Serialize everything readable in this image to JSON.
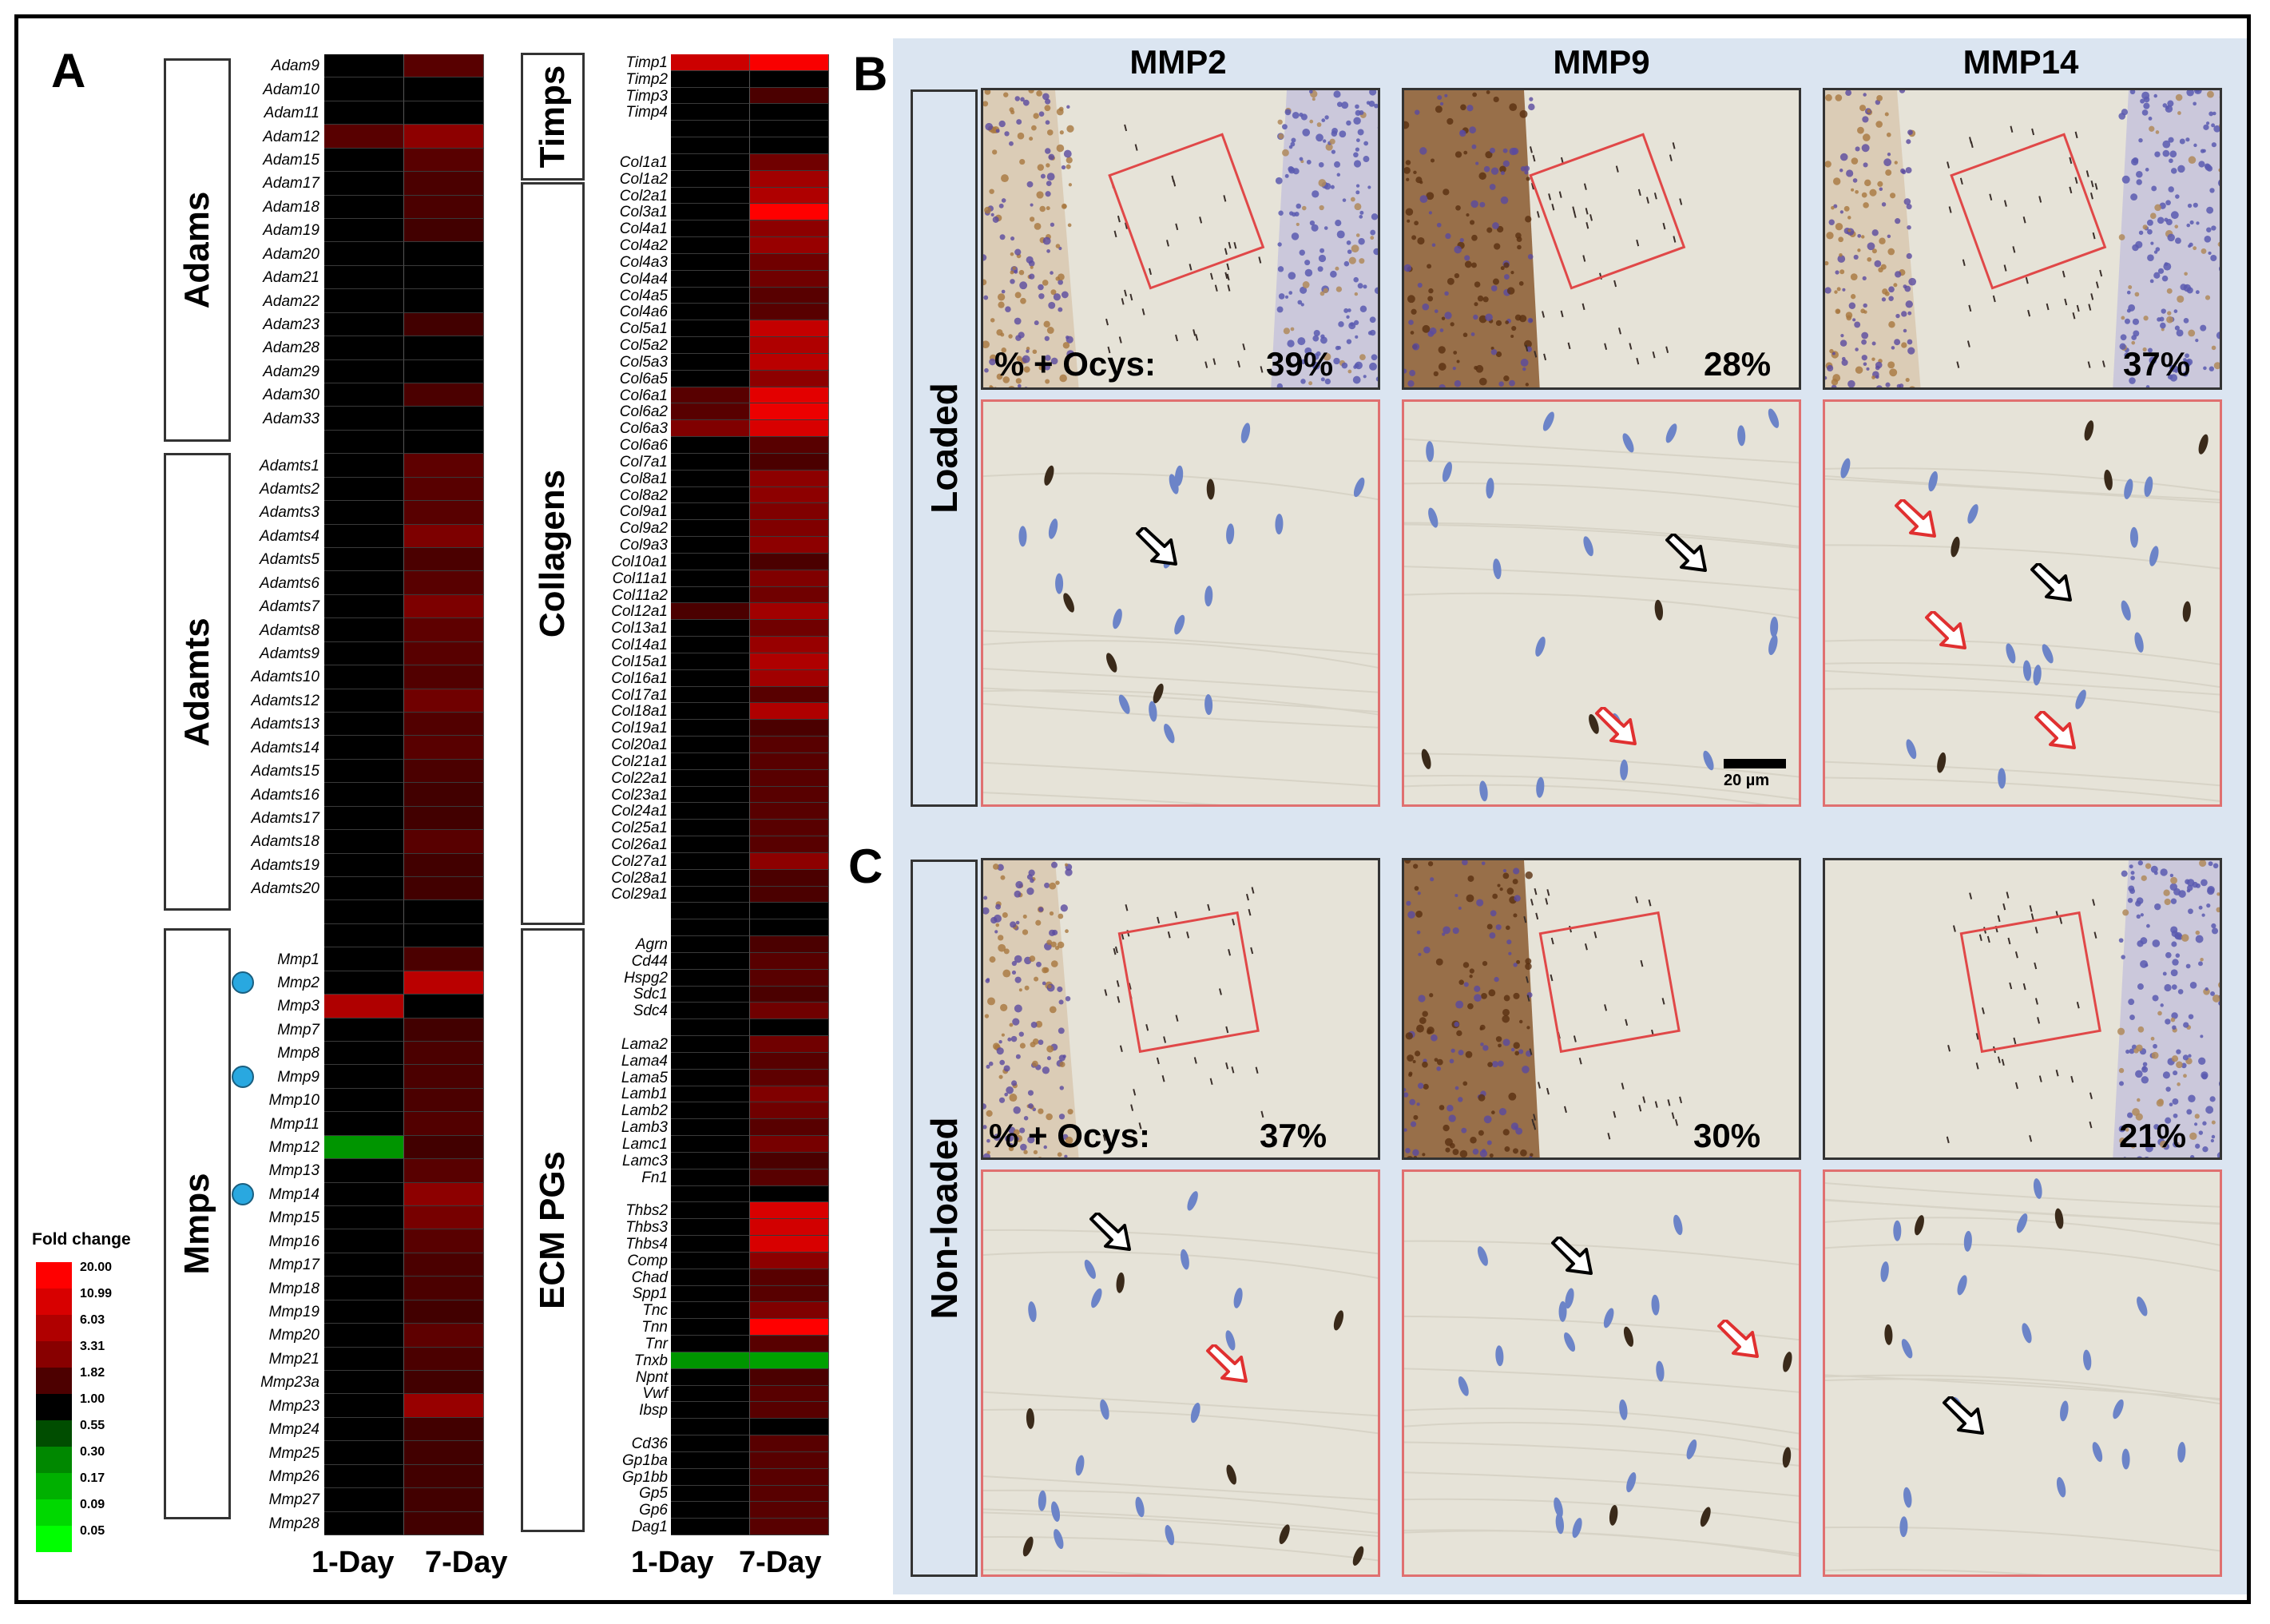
{
  "panels": {
    "A": "A",
    "B": "B",
    "C": "C"
  },
  "heatmap_left": {
    "group_labels": [
      "Adams",
      "Adamts",
      "Mmps"
    ],
    "genes": [
      "Adam9",
      "Adam10",
      "Adam11",
      "Adam12",
      "Adam15",
      "Adam17",
      "Adam18",
      "Adam19",
      "Adam20",
      "Adam21",
      "Adam22",
      "Adam23",
      "Adam28",
      "Adam29",
      "Adam30",
      "Adam33",
      "",
      "Adamts1",
      "Adamts2",
      "Adamts3",
      "Adamts4",
      "Adamts5",
      "Adamts6",
      "Adamts7",
      "Adamts8",
      "Adamts9",
      "Adamts10",
      "Adamts12",
      "Adamts13",
      "Adamts14",
      "Adamts15",
      "Adamts16",
      "Adamts17",
      "Adamts18",
      "Adamts19",
      "Adamts20",
      "",
      "",
      "Mmp1",
      "Mmp2",
      "Mmp3",
      "Mmp7",
      "Mmp8",
      "Mmp9",
      "Mmp10",
      "Mmp11",
      "Mmp12",
      "Mmp13",
      "Mmp14",
      "Mmp15",
      "Mmp16",
      "Mmp17",
      "Mmp18",
      "Mmp19",
      "Mmp20",
      "Mmp21",
      "Mmp23a",
      "Mmp23",
      "Mmp24",
      "Mmp25",
      "Mmp26",
      "Mmp27",
      "Mmp28"
    ],
    "day1": [
      1.0,
      1.0,
      1.0,
      1.5,
      1.0,
      1.0,
      1.0,
      1.0,
      1.0,
      1.0,
      1.0,
      1.0,
      1.0,
      1.0,
      1.0,
      1.0,
      1.0,
      1.0,
      1.0,
      1.0,
      1.0,
      1.0,
      1.0,
      1.0,
      1.0,
      1.0,
      1.0,
      1.0,
      1.0,
      1.0,
      1.0,
      1.0,
      1.0,
      1.0,
      1.0,
      1.0,
      1.0,
      1.0,
      1.0,
      1.0,
      5.0,
      1.0,
      1.0,
      1.0,
      1.0,
      1.0,
      0.3,
      1.0,
      1.0,
      1.0,
      1.0,
      1.0,
      1.0,
      1.0,
      1.0,
      1.0,
      1.0,
      1.0,
      1.0,
      1.0,
      1.0,
      1.0,
      1.0
    ],
    "day7": [
      1.5,
      1.0,
      1.0,
      3.0,
      1.5,
      1.3,
      1.3,
      1.2,
      1.0,
      1.0,
      1.0,
      1.2,
      1.0,
      1.0,
      1.3,
      1.0,
      1.0,
      1.6,
      1.5,
      1.5,
      2.4,
      1.3,
      1.5,
      2.4,
      1.6,
      1.5,
      1.4,
      2.0,
      1.4,
      1.5,
      1.3,
      1.2,
      1.2,
      1.5,
      1.2,
      1.2,
      1.0,
      1.0,
      1.3,
      6.0,
      1.0,
      1.2,
      1.3,
      1.3,
      1.3,
      1.4,
      1.2,
      1.5,
      3.0,
      2.2,
      1.5,
      1.3,
      1.3,
      1.2,
      1.6,
      1.3,
      1.2,
      3.5,
      1.2,
      1.2,
      1.2,
      1.2,
      1.2
    ],
    "highlight_genes": [
      "Mmp2",
      "Mmp9",
      "Mmp14"
    ],
    "x_labels": [
      "1-Day",
      "7-Day"
    ]
  },
  "heatmap_right": {
    "group_labels": [
      "Timps",
      "Collagens",
      "ECM PGs"
    ],
    "genes": [
      "Timp1",
      "Timp2",
      "Timp3",
      "Timp4",
      "",
      "",
      "Col1a1",
      "Col1a2",
      "Col2a1",
      "Col3a1",
      "Col4a1",
      "Col4a2",
      "Col4a3",
      "Col4a4",
      "Col4a5",
      "Col4a6",
      "Col5a1",
      "Col5a2",
      "Col5a3",
      "Col6a5",
      "Col6a1",
      "Col6a2",
      "Col6a3",
      "Col6a6",
      "Col7a1",
      "Col8a1",
      "Col8a2",
      "Col9a1",
      "Col9a2",
      "Col9a3",
      "Col10a1",
      "Col11a1",
      "Col11a2",
      "Col12a1",
      "Col13a1",
      "Col14a1",
      "Col15a1",
      "Col16a1",
      "Col17a1",
      "Col18a1",
      "Col19a1",
      "Col20a1",
      "Col21a1",
      "Col22a1",
      "Col23a1",
      "Col24a1",
      "Col25a1",
      "Col26a1",
      "Col27a1",
      "Col28a1",
      "Col29a1",
      "",
      "",
      "Agrn",
      "Cd44",
      "Hspg2",
      "Sdc1",
      "Sdc4",
      "",
      "Lama2",
      "Lama4",
      "Lama5",
      "Lamb1",
      "Lamb2",
      "Lamb3",
      "Lamc1",
      "Lamc3",
      "Fn1",
      "",
      "Thbs2",
      "Thbs3",
      "Thbs4",
      "Comp",
      "Chad",
      "Spp1",
      "Tnc",
      "Tnn",
      "Tnr",
      "Tnxb",
      "Npnt",
      "Vwf",
      "Ibsp",
      "",
      "Cd36",
      "Gp1ba",
      "Gp1bb",
      "Gp5",
      "Gp6",
      "Dag1"
    ],
    "day1": [
      8.0,
      1.0,
      1.0,
      1.0,
      1.0,
      1.0,
      1.0,
      1.0,
      1.0,
      1.0,
      1.0,
      1.0,
      1.0,
      1.0,
      1.0,
      1.0,
      1.0,
      1.0,
      1.0,
      1.0,
      1.5,
      1.5,
      2.5,
      1.0,
      1.0,
      1.0,
      1.0,
      1.0,
      1.0,
      1.0,
      1.0,
      1.0,
      1.0,
      1.3,
      1.0,
      1.0,
      1.0,
      1.0,
      1.0,
      1.0,
      1.0,
      1.0,
      1.0,
      1.0,
      1.0,
      1.0,
      1.0,
      1.0,
      1.0,
      1.0,
      1.0,
      1.0,
      1.0,
      1.0,
      1.0,
      1.0,
      1.0,
      1.0,
      1.0,
      1.0,
      1.0,
      1.0,
      1.0,
      1.0,
      1.0,
      1.0,
      1.0,
      1.0,
      1.0,
      1.0,
      1.0,
      1.0,
      1.0,
      1.0,
      1.0,
      1.0,
      1.0,
      1.0,
      0.3,
      1.0,
      1.0,
      1.0,
      1.0,
      1.0,
      1.0,
      1.0,
      1.0,
      1.0,
      1.0
    ],
    "day7": [
      18.0,
      1.0,
      1.3,
      1.0,
      1.0,
      1.0,
      2.0,
      4.0,
      5.0,
      20.0,
      3.0,
      3.5,
      2.0,
      2.0,
      1.5,
      1.5,
      7.0,
      5.0,
      6.0,
      3.0,
      12.0,
      14.0,
      10.0,
      1.5,
      1.3,
      3.0,
      3.0,
      2.5,
      2.5,
      3.0,
      1.3,
      2.5,
      2.0,
      4.0,
      2.0,
      3.5,
      5.0,
      4.0,
      1.5,
      5.0,
      1.3,
      1.5,
      1.5,
      1.5,
      1.5,
      1.5,
      1.5,
      1.5,
      3.0,
      1.3,
      1.3,
      1.0,
      1.0,
      1.3,
      1.5,
      1.5,
      1.3,
      2.0,
      1.0,
      2.0,
      1.5,
      1.6,
      2.5,
      2.0,
      1.5,
      2.2,
      1.3,
      1.5,
      1.0,
      10.0,
      9.0,
      10.0,
      3.0,
      1.5,
      1.5,
      2.5,
      20.0,
      1.5,
      0.25,
      1.3,
      1.5,
      1.5,
      1.0,
      1.5,
      1.5,
      1.5,
      1.5,
      1.5,
      1.5
    ],
    "x_labels": [
      "1-Day",
      "7-Day"
    ]
  },
  "legend": {
    "title": "Fold change",
    "values": [
      "20.00",
      "10.99",
      "6.03",
      "3.31",
      "1.82",
      "1.00",
      "0.55",
      "0.30",
      "0.17",
      "0.09",
      "0.05"
    ],
    "colors": [
      "#ff0000",
      "#d80000",
      "#b00000",
      "#880000",
      "#4d0000",
      "#000000",
      "#004d00",
      "#008800",
      "#00b000",
      "#00d800",
      "#00ff00"
    ]
  },
  "micrographs": {
    "columns": [
      "MMP2",
      "MMP9",
      "MMP14"
    ],
    "rows": [
      "Loaded",
      "Non-loaded"
    ],
    "ocys_label": "% + Ocys:",
    "loaded_pct": [
      "39%",
      "28%",
      "37%"
    ],
    "nonloaded_pct": [
      "37%",
      "30%",
      "21%"
    ],
    "scale_bar": "20 µm"
  },
  "colors": {
    "bg_panel": "#dbe5f1",
    "highlight_dot": "#29a8e0",
    "red_arrow": "#e03030"
  }
}
